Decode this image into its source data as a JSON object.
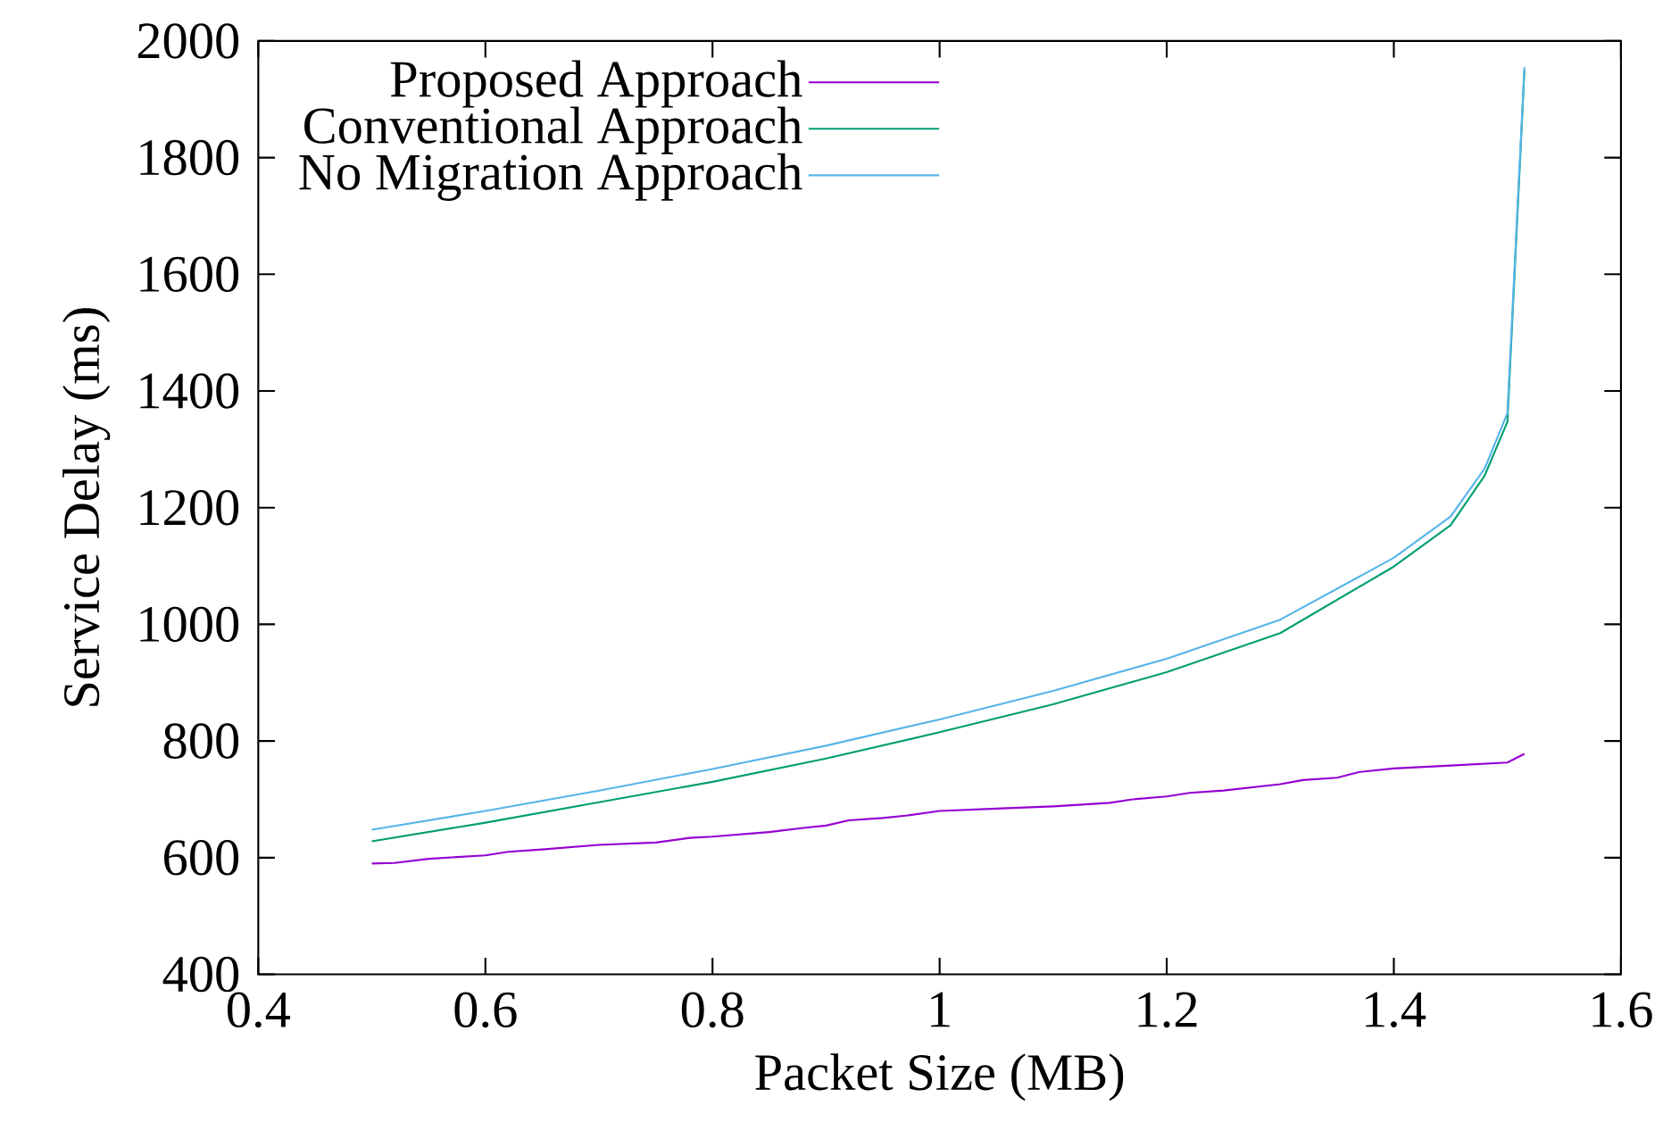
{
  "chart_data": {
    "type": "line",
    "xlabel": "Packet Size (MB)",
    "ylabel": "Service Delay (ms)",
    "xlim": [
      0.4,
      1.6
    ],
    "ylim": [
      400,
      2000
    ],
    "xticks": [
      0.4,
      0.6,
      0.8,
      1,
      1.2,
      1.4,
      1.6
    ],
    "yticks": [
      400,
      600,
      800,
      1000,
      1200,
      1400,
      1600,
      1800,
      2000
    ],
    "legend": "top left",
    "marker": "none",
    "line_style": "solid",
    "grid": false,
    "series": [
      {
        "name": "Proposed Approach",
        "color": "#9400d3",
        "x": [
          0.5,
          0.52,
          0.55,
          0.6,
          0.62,
          0.65,
          0.7,
          0.75,
          0.78,
          0.8,
          0.85,
          0.88,
          0.9,
          0.92,
          0.95,
          0.97,
          1.0,
          1.05,
          1.1,
          1.15,
          1.17,
          1.2,
          1.22,
          1.25,
          1.3,
          1.32,
          1.35,
          1.37,
          1.4,
          1.45,
          1.5,
          1.515
        ],
        "values": [
          590,
          591,
          598,
          604,
          610,
          614,
          622,
          626,
          634,
          636,
          644,
          651,
          655,
          664,
          668,
          672,
          680,
          684,
          688,
          694,
          700,
          705,
          711,
          715,
          726,
          733,
          737,
          747,
          753,
          758,
          763,
          778
        ]
      },
      {
        "name": "Conventional Approach",
        "color": "#009e73",
        "x": [
          0.5,
          0.6,
          0.7,
          0.8,
          0.9,
          1.0,
          1.1,
          1.2,
          1.3,
          1.4,
          1.45,
          1.48,
          1.5,
          1.515
        ],
        "values": [
          628,
          660,
          695,
          730,
          770,
          815,
          863,
          918,
          985,
          1099,
          1170,
          1255,
          1347,
          1950
        ]
      },
      {
        "name": "No Migration Approach",
        "color": "#56b4e9",
        "x": [
          0.5,
          0.6,
          0.7,
          0.8,
          0.9,
          1.0,
          1.1,
          1.2,
          1.3,
          1.4,
          1.45,
          1.48,
          1.5,
          1.515
        ],
        "values": [
          648,
          680,
          715,
          752,
          792,
          837,
          886,
          941,
          1008,
          1114,
          1185,
          1267,
          1362,
          1955
        ]
      }
    ]
  }
}
